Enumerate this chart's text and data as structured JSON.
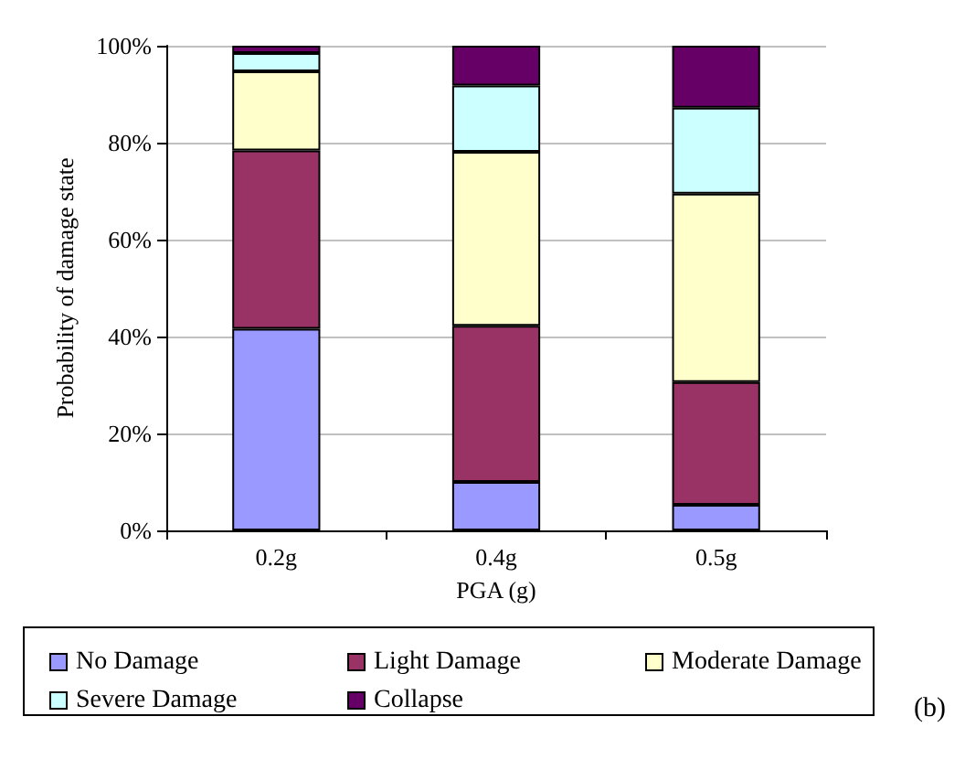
{
  "chart_data": {
    "type": "bar",
    "stacked": true,
    "xlabel": "PGA (g)",
    "ylabel": "Probability of damage state",
    "categories": [
      "0.2g",
      "0.4g",
      "0.5g"
    ],
    "series": [
      {
        "name": "No Damage",
        "color": "#9999ff",
        "values": [
          41.6,
          10.0,
          5.3
        ]
      },
      {
        "name": "Light Damage",
        "color": "#993366",
        "values": [
          36.8,
          32.2,
          25.3
        ]
      },
      {
        "name": "Moderate Damage",
        "color": "#ffffcc",
        "values": [
          16.3,
          35.9,
          38.9
        ]
      },
      {
        "name": "Severe Damage",
        "color": "#ccffff",
        "values": [
          3.8,
          13.7,
          17.7
        ]
      },
      {
        "name": "Collapse",
        "color": "#660066",
        "values": [
          1.5,
          8.2,
          12.8
        ]
      }
    ],
    "ylim": [
      0,
      100
    ],
    "yticks": [
      {
        "value": 0,
        "label": "0%"
      },
      {
        "value": 20,
        "label": "20%"
      },
      {
        "value": 40,
        "label": "40%"
      },
      {
        "value": 60,
        "label": "60%"
      },
      {
        "value": 80,
        "label": "80%"
      },
      {
        "value": 100,
        "label": "100%"
      }
    ],
    "grid": "y",
    "legend": "bottom",
    "annotations": [
      "(b)"
    ]
  }
}
